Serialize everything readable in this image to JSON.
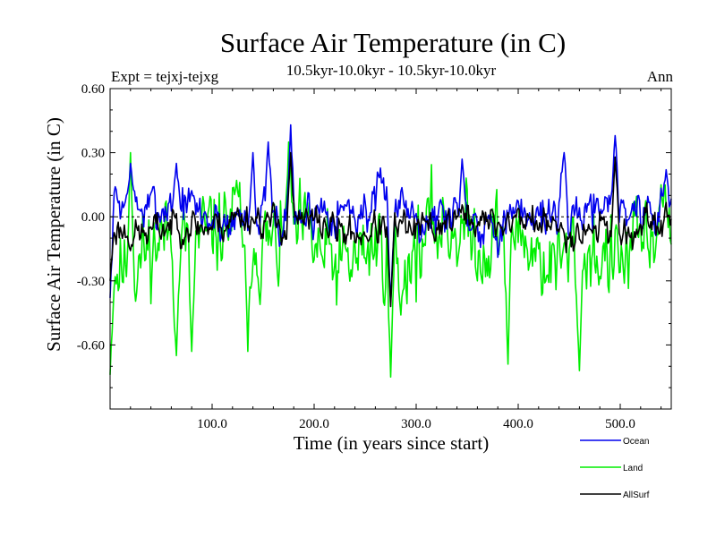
{
  "chart_data": {
    "type": "line",
    "title": "Surface Air Temperature (in C)",
    "subtitle": "10.5kyr-10.0kyr - 10.5kyr-10.0kyr",
    "expt_label": "Expt = tejxj-tejxg",
    "season_label": "Ann",
    "xlabel": "Time (in years since start)",
    "ylabel": "Surface Air Temperature (in C)",
    "xlim": [
      0,
      550
    ],
    "ylim": [
      -0.9,
      0.6
    ],
    "xticks": [
      100,
      200,
      300,
      400,
      500
    ],
    "xtick_labels": [
      "100.0",
      "200.0",
      "300.0",
      "400.0",
      "500.0"
    ],
    "yticks": [
      -0.6,
      -0.3,
      0.0,
      0.3,
      0.6
    ],
    "ytick_labels": [
      "-0.60",
      "-0.30",
      "0.00",
      "0.30",
      "0.60"
    ],
    "zero_line": 0.0,
    "grid": false,
    "legend_position": "bottom-right",
    "series": [
      {
        "name": "Land",
        "color": "#00ee00",
        "offset": -0.13,
        "amp": 0.46,
        "seed": 11,
        "anchors": [
          [
            0,
            -0.74
          ],
          [
            20,
            0.3
          ],
          [
            65,
            -0.65
          ],
          [
            80,
            -0.63
          ],
          [
            135,
            -0.63
          ],
          [
            175,
            0.35
          ],
          [
            275,
            -0.75
          ],
          [
            285,
            -0.46
          ],
          [
            390,
            -0.69
          ],
          [
            460,
            -0.72
          ],
          [
            540,
            0.15
          ]
        ]
      },
      {
        "name": "Ocean",
        "color": "#0000ee",
        "offset": 0.02,
        "amp": 0.24,
        "seed": 7,
        "anchors": [
          [
            0,
            -0.38
          ],
          [
            20,
            0.25
          ],
          [
            65,
            0.25
          ],
          [
            140,
            0.3
          ],
          [
            155,
            0.35
          ],
          [
            177,
            0.43
          ],
          [
            275,
            -0.4
          ],
          [
            345,
            0.27
          ],
          [
            445,
            0.3
          ],
          [
            495,
            0.38
          ],
          [
            545,
            0.22
          ]
        ]
      },
      {
        "name": "AllSurf",
        "color": "#000000",
        "offset": -0.04,
        "amp": 0.17,
        "seed": 23,
        "anchors": [
          [
            0,
            -0.3
          ],
          [
            177,
            0.3
          ],
          [
            275,
            -0.42
          ],
          [
            495,
            0.28
          ]
        ]
      }
    ],
    "n_points": 550
  }
}
